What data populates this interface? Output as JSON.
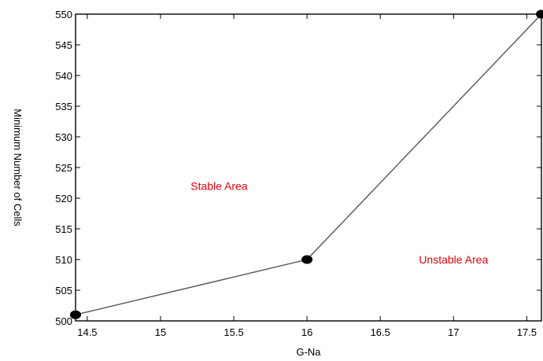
{
  "chart_data": {
    "type": "line",
    "title": "",
    "xlabel": "G-Na",
    "ylabel": "Minimum Number of Cells",
    "xlim": [
      14.42,
      17.6
    ],
    "ylim": [
      500,
      550
    ],
    "x_ticks": [
      14.5,
      15,
      15.5,
      16,
      16.5,
      17,
      17.5
    ],
    "x_tick_labels": [
      "14.5",
      "15",
      "15.5",
      "16",
      "16.5",
      "17",
      "17.5"
    ],
    "y_ticks": [
      500,
      505,
      510,
      515,
      520,
      525,
      530,
      535,
      540,
      545,
      550
    ],
    "y_tick_labels": [
      "500",
      "505",
      "510",
      "515",
      "520",
      "525",
      "530",
      "535",
      "540",
      "545",
      "550"
    ],
    "grid": false,
    "series": [
      {
        "x": [
          14.42,
          16,
          17.6
        ],
        "y": [
          501,
          510,
          550
        ]
      }
    ],
    "annotations": [
      {
        "text": "Stable Area",
        "x": 15.4,
        "y": 522,
        "color": "#e8000b"
      },
      {
        "text": "Unstable Area",
        "x": 17.0,
        "y": 510,
        "color": "#e8000b"
      }
    ],
    "line_color": "#555555",
    "marker_color": "#000000"
  }
}
